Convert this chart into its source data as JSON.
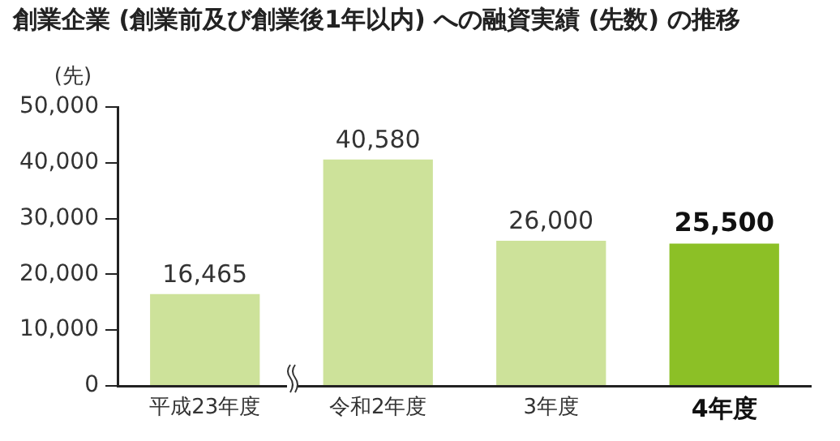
{
  "chart_data": {
    "type": "bar",
    "title": "創業企業 (創業前及び創業後1年以内) への融資実績 (先数) の推移",
    "ylabel": "(先)",
    "categories": [
      "平成23年度",
      "令和2年度",
      "3年度",
      "4年度"
    ],
    "values": [
      16465,
      40580,
      26000,
      25500
    ],
    "value_labels": [
      "16,465",
      "40,580",
      "26,000",
      "25,500"
    ],
    "colors": [
      "#cde29a",
      "#cde29a",
      "#cde29a",
      "#8cc026"
    ],
    "ylim": [
      0,
      50000
    ],
    "yticks": [
      0,
      {
        "value": 10000,
        "label": "10,000"
      },
      {
        "value": 20000,
        "label": "20,000"
      },
      {
        "value": 30000,
        "label": "30,000"
      },
      {
        "value": 40000,
        "label": "40,000"
      },
      {
        "value": 50000,
        "label": "50,000"
      }
    ],
    "grid": false,
    "legend": false
  }
}
